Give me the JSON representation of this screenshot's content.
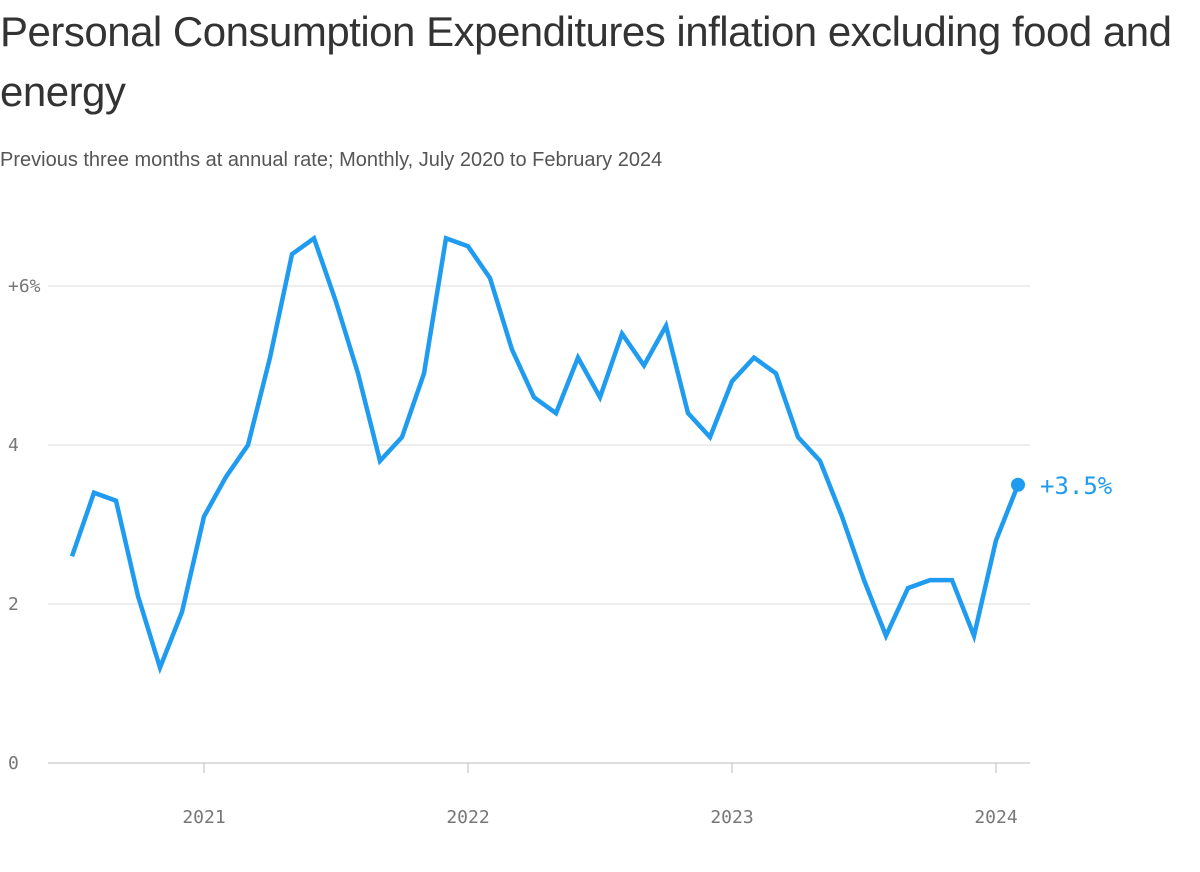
{
  "title": "Personal Consumption Expenditures inflation excluding food and energy",
  "subtitle": "Previous three months at annual rate; Monthly, July 2020 to February 2024",
  "chart_data": {
    "type": "line",
    "x": [
      "2020-07",
      "2020-08",
      "2020-09",
      "2020-10",
      "2020-11",
      "2020-12",
      "2021-01",
      "2021-02",
      "2021-03",
      "2021-04",
      "2021-05",
      "2021-06",
      "2021-07",
      "2021-08",
      "2021-09",
      "2021-10",
      "2021-11",
      "2021-12",
      "2022-01",
      "2022-02",
      "2022-03",
      "2022-04",
      "2022-05",
      "2022-06",
      "2022-07",
      "2022-08",
      "2022-09",
      "2022-10",
      "2022-11",
      "2022-12",
      "2023-01",
      "2023-02",
      "2023-03",
      "2023-04",
      "2023-05",
      "2023-06",
      "2023-07",
      "2023-08",
      "2023-09",
      "2023-10",
      "2023-11",
      "2023-12",
      "2024-01",
      "2024-02"
    ],
    "values": [
      2.6,
      3.4,
      3.3,
      2.1,
      1.2,
      1.9,
      3.1,
      3.6,
      4.0,
      5.1,
      6.4,
      6.6,
      5.8,
      4.9,
      3.8,
      4.1,
      4.9,
      6.6,
      6.5,
      6.1,
      5.2,
      4.6,
      4.4,
      5.1,
      4.6,
      5.4,
      5.0,
      5.5,
      4.4,
      4.1,
      4.8,
      5.1,
      4.9,
      4.1,
      3.8,
      3.1,
      2.3,
      1.6,
      2.2,
      2.3,
      2.3,
      1.6,
      2.8,
      3.5
    ],
    "ylim": [
      0,
      6.6
    ],
    "y_ticks": [
      {
        "value": 0,
        "label": "0"
      },
      {
        "value": 2,
        "label": "2"
      },
      {
        "value": 4,
        "label": "4"
      },
      {
        "value": 6,
        "label": "+6%"
      }
    ],
    "x_ticks": [
      {
        "date": "2021-01",
        "label": "2021"
      },
      {
        "date": "2022-01",
        "label": "2022"
      },
      {
        "date": "2023-01",
        "label": "2023"
      },
      {
        "date": "2024-01",
        "label": "2024"
      }
    ],
    "end_label": "+3.5%",
    "line_color": "#1f9bf0",
    "grid": true,
    "xlabel": "",
    "ylabel": ""
  }
}
